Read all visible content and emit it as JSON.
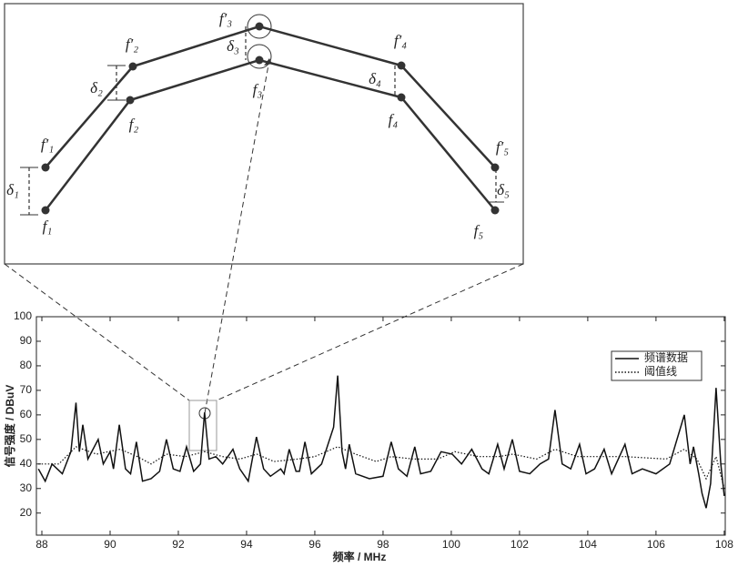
{
  "chart_data": {
    "type": "line",
    "x_label": "频率 / MHz",
    "y_label": "信号强度 / DBuV",
    "xlim": [
      87.84,
      108.03
    ],
    "ylim": [
      11,
      100
    ],
    "xticks": [
      88,
      90,
      92,
      94,
      96,
      98,
      100,
      102,
      104,
      106,
      108
    ],
    "yticks": [
      20,
      30,
      40,
      50,
      60,
      70,
      80,
      90,
      100
    ],
    "grid": false,
    "legend": "northeast",
    "series": [
      {
        "name": "频谱数据",
        "color": "#111111",
        "linestyle": "solid",
        "x": [
          87.9,
          88.1,
          88.3,
          88.6,
          88.85,
          89.0,
          89.1,
          89.2,
          89.35,
          89.5,
          89.65,
          89.8,
          90.0,
          90.1,
          90.27,
          90.45,
          90.6,
          90.77,
          90.95,
          91.2,
          91.45,
          91.65,
          91.85,
          92.05,
          92.24,
          92.45,
          92.65,
          92.77,
          92.9,
          93.1,
          93.3,
          93.6,
          93.8,
          94.05,
          94.29,
          94.5,
          94.7,
          95.0,
          95.1,
          95.25,
          95.45,
          95.55,
          95.71,
          95.9,
          96.2,
          96.55,
          96.67,
          96.8,
          96.9,
          97.01,
          97.2,
          97.6,
          98.0,
          98.24,
          98.45,
          98.7,
          98.93,
          99.1,
          99.4,
          99.7,
          100.03,
          100.3,
          100.6,
          100.9,
          101.1,
          101.36,
          101.55,
          101.79,
          102.0,
          102.3,
          102.6,
          102.85,
          103.04,
          103.25,
          103.5,
          103.76,
          103.95,
          104.2,
          104.48,
          104.7,
          105.09,
          105.3,
          105.6,
          106.0,
          106.4,
          106.83,
          107.0,
          107.1,
          107.25,
          107.35,
          107.47,
          107.6,
          107.76,
          107.9,
          108.0
        ],
        "values": [
          38,
          33,
          40,
          36,
          45,
          65,
          45,
          56,
          42,
          46,
          50,
          40,
          45,
          38,
          56,
          38,
          36,
          49,
          33,
          34,
          37,
          50,
          38,
          37,
          47,
          37,
          40,
          61,
          42,
          43,
          40,
          46,
          38,
          33,
          51,
          38,
          35,
          38,
          36,
          46,
          37,
          37,
          49,
          36,
          40,
          55,
          76,
          45,
          38,
          48,
          36,
          34,
          35,
          49,
          38,
          35,
          47,
          36,
          37,
          45,
          44,
          40,
          46,
          38,
          36,
          48,
          38,
          50,
          37,
          36,
          40,
          42,
          62,
          40,
          38,
          48,
          36,
          38,
          46,
          36,
          48,
          36,
          38,
          36,
          40,
          60,
          40,
          47,
          36,
          28,
          22,
          32,
          71,
          40,
          27
        ]
      },
      {
        "name": "阈值线",
        "color": "#111111",
        "linestyle": "dotted",
        "x": [
          87.9,
          88.5,
          89.0,
          89.6,
          90.3,
          90.8,
          91.2,
          91.65,
          92.2,
          92.77,
          93.3,
          93.8,
          94.3,
          94.8,
          95.5,
          96.0,
          96.67,
          97.2,
          97.8,
          98.24,
          98.9,
          99.6,
          100.1,
          100.8,
          101.4,
          101.8,
          102.5,
          103.04,
          103.7,
          104.5,
          105.1,
          106.3,
          106.83,
          107.2,
          107.47,
          107.76,
          108.0
        ],
        "values": [
          40,
          40,
          47,
          44,
          46,
          43,
          40,
          44,
          43,
          45,
          43,
          42,
          44,
          41,
          42,
          43,
          47,
          44,
          41,
          43,
          42,
          42,
          45,
          43,
          43,
          44,
          42,
          46,
          43,
          43,
          43,
          42,
          46,
          42,
          34,
          43,
          30
        ]
      }
    ]
  },
  "inset": {
    "points": [
      "f₁",
      "f₂",
      "f₃",
      "f₄",
      "f₅"
    ],
    "prime_points": [
      "f′₁",
      "f′₂",
      "f′₃",
      "f′₄",
      "f′₅"
    ],
    "deltas": [
      "δ₁",
      "δ₂",
      "δ₃",
      "δ₄",
      "δ₅"
    ]
  }
}
